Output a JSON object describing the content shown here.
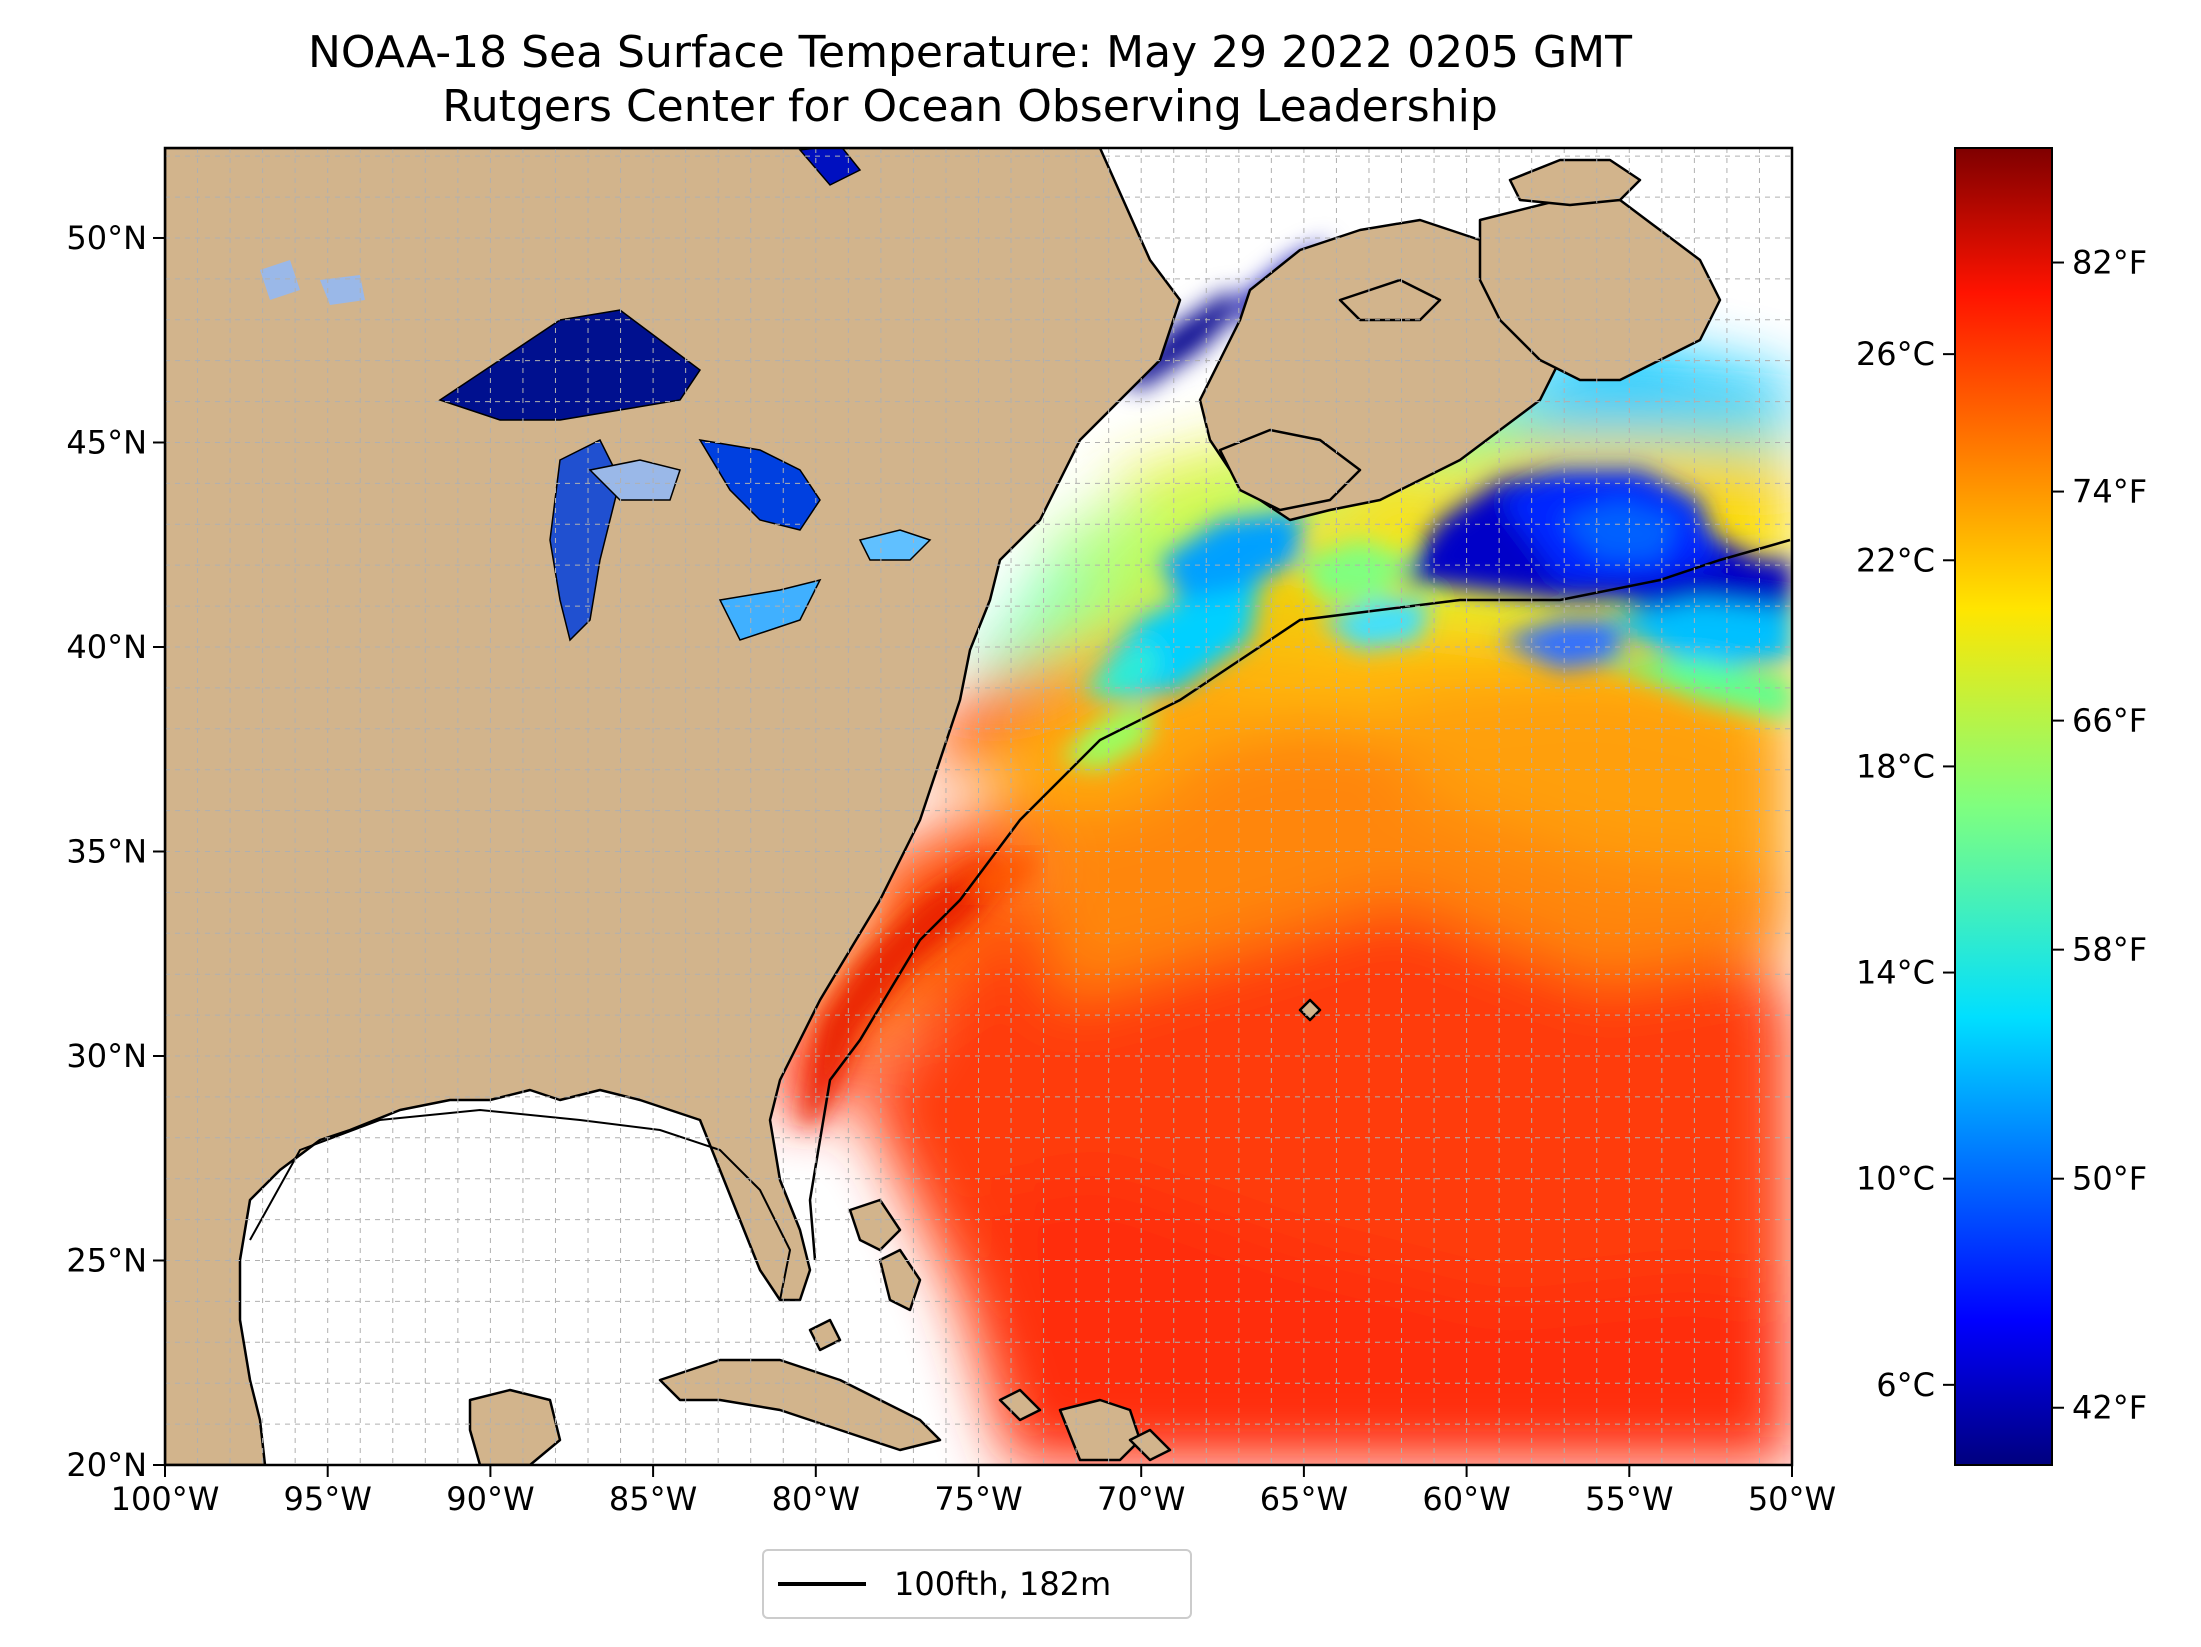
{
  "title": "NOAA-18 Sea Surface Temperature: May 29 2022 0205 GMT",
  "subtitle": "Rutgers Center for Ocean Observing Leadership",
  "map": {
    "lon_range": [
      -100,
      -50
    ],
    "lat_range": [
      20,
      52.2
    ],
    "lon_ticks": [
      -100,
      -95,
      -90,
      -85,
      -80,
      -75,
      -70,
      -65,
      -60,
      -55,
      -50
    ],
    "lon_tick_labels": [
      "100°W",
      "95°W",
      "90°W",
      "85°W",
      "80°W",
      "75°W",
      "70°W",
      "65°W",
      "60°W",
      "55°W",
      "50°W"
    ],
    "lat_ticks": [
      20,
      25,
      30,
      35,
      40,
      45,
      50
    ],
    "lat_tick_labels": [
      "20°N",
      "25°N",
      "30°N",
      "35°N",
      "40°N",
      "45°N",
      "50°N"
    ],
    "land_color": "#d2b48c",
    "grid": true,
    "colormap": "jet"
  },
  "colorbar": {
    "celsius_ticks": [
      6,
      10,
      14,
      18,
      22,
      26
    ],
    "celsius_labels": [
      "6°C",
      "10°C",
      "14°C",
      "18°C",
      "22°C",
      "26°C"
    ],
    "fahrenheit_ticks": [
      42,
      50,
      58,
      66,
      74,
      82
    ],
    "fahrenheit_labels": [
      "42°F",
      "50°F",
      "58°F",
      "66°F",
      "74°F",
      "82°F"
    ],
    "range_f": [
      40,
      86
    ]
  },
  "legend": {
    "label": "100fth, 182m",
    "placement": "bottom-center"
  }
}
